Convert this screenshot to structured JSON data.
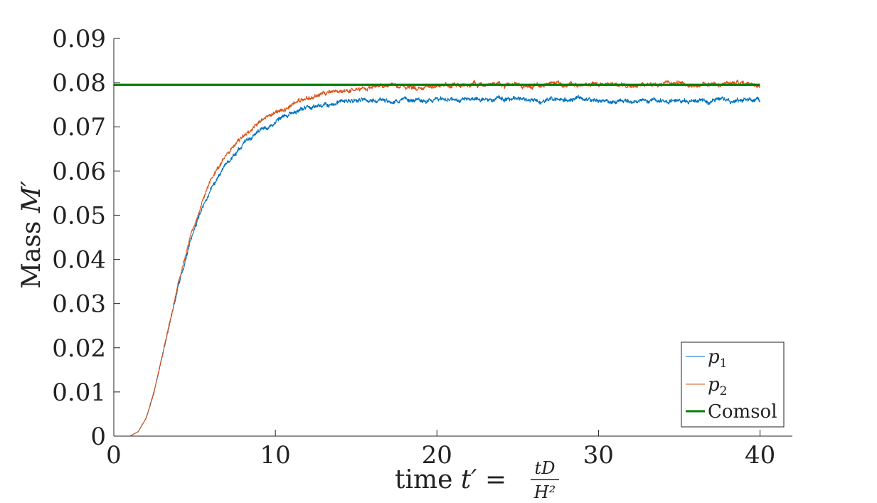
{
  "chart_data": {
    "type": "line",
    "title": "",
    "xlabel_parts": {
      "word": "time",
      "variable": "t′",
      "equals": "=",
      "numerator": "tD",
      "denominator": "H²"
    },
    "ylabel_parts": {
      "word": "Mass",
      "variable": "M′"
    },
    "xlim": [
      0,
      42
    ],
    "ylim": [
      0,
      0.09
    ],
    "x_ticks": [
      0,
      10,
      20,
      30,
      40
    ],
    "x_tick_labels": [
      "0",
      "10",
      "20",
      "30",
      "40"
    ],
    "y_ticks": [
      0,
      0.01,
      0.02,
      0.03,
      0.04,
      0.05,
      0.06,
      0.07,
      0.08,
      0.09
    ],
    "y_tick_labels": [
      "0",
      "0.01",
      "0.02",
      "0.03",
      "0.04",
      "0.05",
      "0.06",
      "0.07",
      "0.08",
      "0.09"
    ],
    "grid": false,
    "legend_position": "bottom-right",
    "series": [
      {
        "name": "p1",
        "color": "#0072BD",
        "noise": 0.0007,
        "x": [
          0,
          1,
          1.5,
          2,
          2.5,
          3,
          3.5,
          4,
          4.5,
          5,
          5.5,
          6,
          7,
          8,
          9,
          10,
          11,
          12,
          13,
          14,
          15,
          16,
          18,
          20,
          25,
          30,
          35,
          40
        ],
        "values": [
          0,
          0,
          0.001,
          0.004,
          0.01,
          0.018,
          0.026,
          0.034,
          0.041,
          0.047,
          0.052,
          0.056,
          0.062,
          0.066,
          0.069,
          0.071,
          0.073,
          0.0745,
          0.075,
          0.0755,
          0.076,
          0.076,
          0.076,
          0.0763,
          0.0763,
          0.076,
          0.076,
          0.0762
        ]
      },
      {
        "name": "p2",
        "color": "#D95319",
        "noise": 0.0007,
        "x": [
          0,
          1,
          1.5,
          2,
          2.5,
          3,
          3.5,
          4,
          4.5,
          5,
          5.5,
          6,
          7,
          8,
          9,
          10,
          11,
          12,
          13,
          14,
          15,
          16,
          18,
          20,
          25,
          30,
          35,
          40
        ],
        "values": [
          0,
          0,
          0.001,
          0.004,
          0.01,
          0.018,
          0.027,
          0.035,
          0.042,
          0.048,
          0.053,
          0.058,
          0.064,
          0.068,
          0.071,
          0.073,
          0.075,
          0.0765,
          0.0775,
          0.078,
          0.0785,
          0.079,
          0.079,
          0.0793,
          0.0795,
          0.0795,
          0.0795,
          0.0795
        ]
      },
      {
        "name": "Comsol",
        "color": "#008000",
        "noise": 0,
        "x": [
          0,
          40
        ],
        "values": [
          0.0795,
          0.0795
        ]
      }
    ],
    "legend_labels": [
      {
        "var": "p",
        "sub": "1"
      },
      {
        "var": "p",
        "sub": "2"
      },
      {
        "text": "Comsol"
      }
    ]
  }
}
